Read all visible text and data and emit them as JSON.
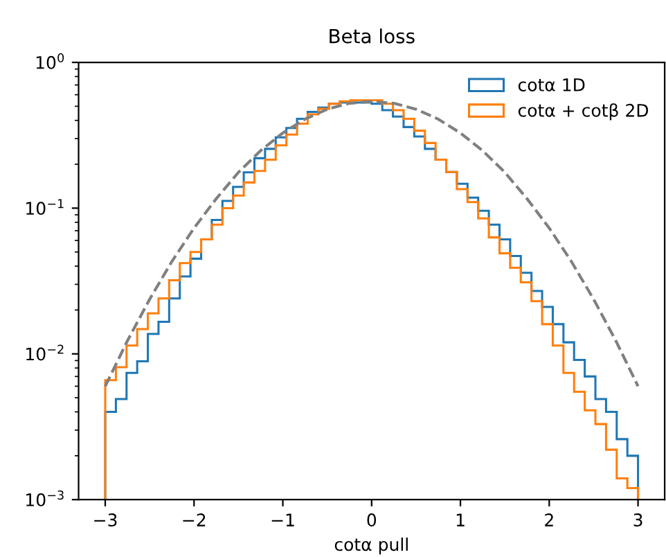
{
  "chart_data": {
    "type": "histogram",
    "title": "Beta loss",
    "xlabel": "cotα pull",
    "bins": [
      -3.0,
      -2.88,
      -2.76,
      -2.64,
      -2.52,
      -2.4,
      -2.28,
      -2.16,
      -2.04,
      -1.92,
      -1.8,
      -1.68,
      -1.56,
      -1.44,
      -1.32,
      -1.2,
      -1.08,
      -0.96,
      -0.84,
      -0.72,
      -0.6,
      -0.48,
      -0.36,
      -0.24,
      -0.12,
      0.0,
      0.12,
      0.24,
      0.36,
      0.48,
      0.6,
      0.72,
      0.84,
      0.96,
      1.08,
      1.2,
      1.32,
      1.44,
      1.56,
      1.68,
      1.8,
      1.92,
      2.04,
      2.16,
      2.28,
      2.4,
      2.52,
      2.64,
      2.76,
      2.88,
      3.0
    ],
    "series": [
      {
        "name": "cotα 1D",
        "color": "#1f77b4",
        "values": [
          0.004,
          0.0049,
          0.0074,
          0.0089,
          0.0137,
          0.0166,
          0.024,
          0.034,
          0.045,
          0.061,
          0.083,
          0.112,
          0.14,
          0.176,
          0.22,
          0.255,
          0.306,
          0.355,
          0.41,
          0.457,
          0.49,
          0.52,
          0.53,
          0.53,
          0.53,
          0.52,
          0.47,
          0.425,
          0.36,
          0.31,
          0.255,
          0.215,
          0.177,
          0.147,
          0.118,
          0.096,
          0.077,
          0.061,
          0.047,
          0.036,
          0.027,
          0.021,
          0.016,
          0.012,
          0.0091,
          0.007,
          0.0049,
          0.004,
          0.0026,
          0.002
        ]
      },
      {
        "name": "cotα + cotβ 2D",
        "color": "#ff7f0e",
        "values": [
          0.0066,
          0.0081,
          0.0114,
          0.0148,
          0.019,
          0.024,
          0.032,
          0.042,
          0.05,
          0.061,
          0.077,
          0.1,
          0.122,
          0.15,
          0.18,
          0.215,
          0.27,
          0.32,
          0.38,
          0.44,
          0.48,
          0.52,
          0.54,
          0.55,
          0.55,
          0.55,
          0.52,
          0.47,
          0.41,
          0.34,
          0.28,
          0.215,
          0.177,
          0.135,
          0.11,
          0.085,
          0.063,
          0.049,
          0.039,
          0.031,
          0.023,
          0.016,
          0.0114,
          0.0074,
          0.0055,
          0.0041,
          0.0033,
          0.0022,
          0.0014,
          0.0012
        ]
      },
      {
        "type": "line",
        "line_style": "dashed",
        "color": "#808080",
        "x": [
          -3,
          -2.75,
          -2.5,
          -2.25,
          -2,
          -1.75,
          -1.5,
          -1.25,
          -1,
          -0.75,
          -0.5,
          -0.25,
          0,
          0.25,
          0.5,
          0.75,
          1,
          1.25,
          1.5,
          1.75,
          2,
          2.25,
          2.5,
          2.75,
          3
        ],
        "values": [
          0.006,
          0.0123,
          0.0237,
          0.043,
          0.073,
          0.116,
          0.176,
          0.248,
          0.328,
          0.408,
          0.477,
          0.524,
          0.54,
          0.524,
          0.477,
          0.408,
          0.328,
          0.248,
          0.176,
          0.116,
          0.073,
          0.043,
          0.0237,
          0.0123,
          0.006
        ]
      }
    ],
    "log": "y",
    "xlim": [
      -3.3,
      3.3
    ],
    "ylim": [
      0.001,
      1
    ],
    "xticks": [
      {
        "value": -3,
        "label": "−3"
      },
      {
        "value": -2,
        "label": "−2"
      },
      {
        "value": -1,
        "label": "−1"
      },
      0,
      1,
      2,
      3
    ],
    "yticks": [
      {
        "value": 0.001,
        "label": "10$^{−3}$"
      },
      {
        "value": 0.01,
        "label": "10$^{−2}$"
      },
      {
        "value": 0.1,
        "label": "10$^{−1}$"
      },
      {
        "value": 1,
        "label": "10$^{0}$"
      }
    ],
    "legend": "top right",
    "grid": false
  }
}
